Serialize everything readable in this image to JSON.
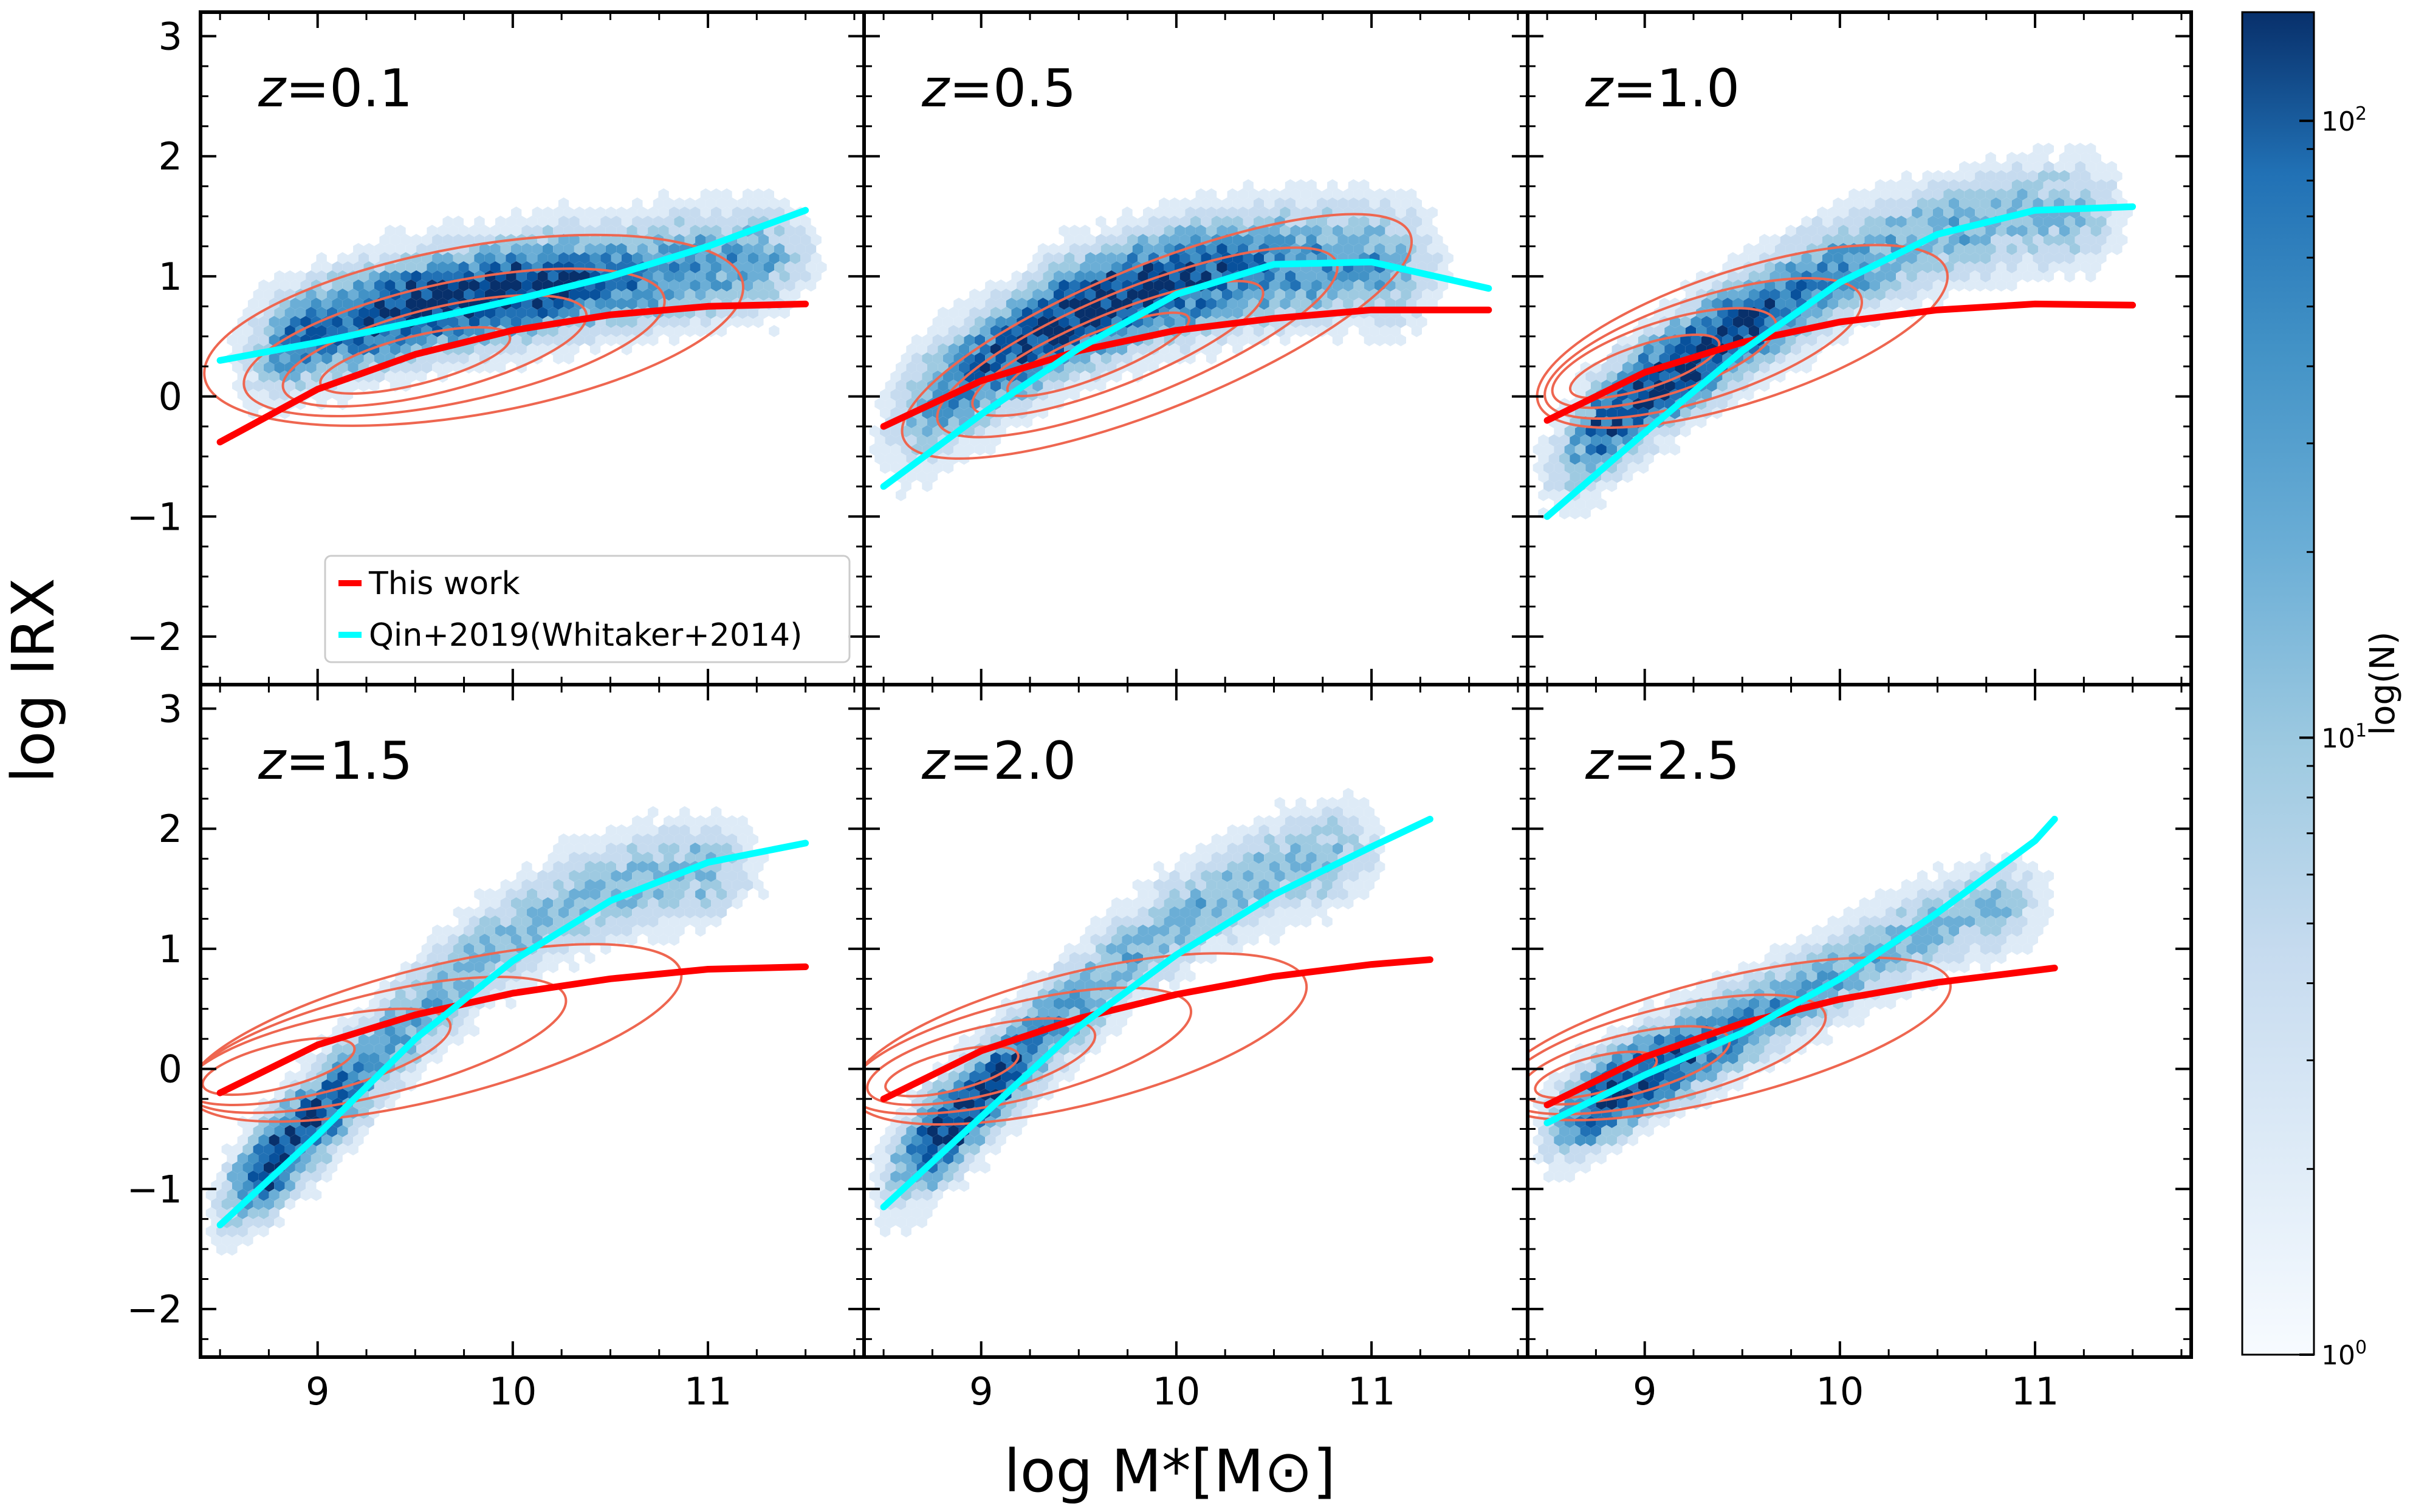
{
  "chart_data": {
    "type": "scatter",
    "subtype": "hexbin density grid with contours and fit curves",
    "xlabel": "log M*[M⊙]",
    "ylabel": "log IRX",
    "xlim": [
      8.4,
      11.8
    ],
    "ylim": [
      -2.4,
      3.2
    ],
    "xticks": [
      9,
      10,
      11
    ],
    "xtick_labels": [
      "9",
      "10",
      "11"
    ],
    "yticks": [
      -2,
      -1,
      0,
      1,
      2,
      3
    ],
    "ytick_labels": [
      "−2",
      "−1",
      "0",
      "1",
      "2",
      "3"
    ],
    "colorbar": {
      "label": "log(N)",
      "scale": "log",
      "range": [
        1,
        150
      ],
      "colormap": "Blues",
      "ticks": [
        {
          "value": 1,
          "base": "10",
          "exp": "0"
        },
        {
          "value": 10,
          "base": "10",
          "exp": "1"
        },
        {
          "value": 100,
          "base": "10",
          "exp": "2"
        }
      ]
    },
    "legend": {
      "panel": 0,
      "position": "lower-center",
      "entries": [
        {
          "label": "This work",
          "color": "#ff0000"
        },
        {
          "label": "Qin+2019(Whitaker+2014)",
          "color": "#00ffff"
        }
      ]
    },
    "colors": {
      "this_work": "#ff0000",
      "qin2019": "#00ffff",
      "contour": "#ee6650"
    },
    "panels": [
      {
        "label_prefix": "z",
        "label_value": "=0.1",
        "this_work": {
          "x": [
            8.5,
            9.0,
            9.5,
            10.0,
            10.5,
            11.0,
            11.5
          ],
          "y": [
            -0.38,
            0.06,
            0.35,
            0.55,
            0.68,
            0.75,
            0.77
          ]
        },
        "qin2019": {
          "x": [
            8.5,
            9.0,
            9.5,
            10.0,
            10.5,
            11.0,
            11.5
          ],
          "y": [
            0.3,
            0.45,
            0.62,
            0.8,
            1.0,
            1.25,
            1.55
          ]
        },
        "density": {
          "x_range": [
            8.6,
            11.5
          ],
          "y_center": [
            0.28,
            0.55,
            0.75,
            0.9,
            1.0,
            1.1,
            1.2
          ],
          "spread": 0.45,
          "peak": {
            "x": 9.7,
            "y": 0.9
          }
        },
        "contours": [
          {
            "center": [
              9.8,
              0.55
            ],
            "half_width": 1.4,
            "half_height": 0.7,
            "tilt_deg": -10
          },
          {
            "center": [
              9.7,
              0.45
            ],
            "half_width": 1.1,
            "half_height": 0.5,
            "tilt_deg": -12
          },
          {
            "center": [
              9.6,
              0.38
            ],
            "half_width": 0.8,
            "half_height": 0.35,
            "tilt_deg": -14
          },
          {
            "center": [
              9.5,
              0.3
            ],
            "half_width": 0.5,
            "half_height": 0.2,
            "tilt_deg": -14
          }
        ]
      },
      {
        "label_prefix": "z",
        "label_value": "=0.5",
        "this_work": {
          "x": [
            8.5,
            9.0,
            9.5,
            10.0,
            10.5,
            11.0,
            11.6
          ],
          "y": [
            -0.25,
            0.13,
            0.38,
            0.55,
            0.65,
            0.72,
            0.72
          ]
        },
        "qin2019": {
          "x": [
            8.5,
            9.0,
            9.5,
            10.0,
            10.5,
            11.0,
            11.6
          ],
          "y": [
            -0.75,
            -0.15,
            0.4,
            0.85,
            1.1,
            1.12,
            0.9
          ]
        },
        "density": {
          "x_range": [
            8.5,
            11.3
          ],
          "y_center": [
            -0.35,
            0.15,
            0.65,
            0.95,
            1.1,
            1.15,
            1.1
          ],
          "spread": 0.5,
          "peak": {
            "x": 9.6,
            "y": 0.7
          }
        },
        "contours": [
          {
            "center": [
              9.9,
              0.5
            ],
            "half_width": 1.4,
            "half_height": 0.6,
            "tilt_deg": -22
          },
          {
            "center": [
              9.8,
              0.45
            ],
            "half_width": 1.1,
            "half_height": 0.45,
            "tilt_deg": -22
          },
          {
            "center": [
              9.7,
              0.4
            ],
            "half_width": 0.8,
            "half_height": 0.3,
            "tilt_deg": -22
          },
          {
            "center": [
              9.6,
              0.35
            ],
            "half_width": 0.5,
            "half_height": 0.18,
            "tilt_deg": -22
          }
        ]
      },
      {
        "label_prefix": "z",
        "label_value": "=1.0",
        "this_work": {
          "x": [
            8.5,
            9.0,
            9.5,
            10.0,
            10.5,
            11.0,
            11.5
          ],
          "y": [
            -0.2,
            0.2,
            0.45,
            0.62,
            0.72,
            0.77,
            0.76
          ]
        },
        "qin2019": {
          "x": [
            8.5,
            9.0,
            9.5,
            10.0,
            10.5,
            11.0,
            11.5
          ],
          "y": [
            -1.0,
            -0.3,
            0.38,
            0.95,
            1.35,
            1.55,
            1.58
          ]
        },
        "density": {
          "x_range": [
            8.5,
            11.4
          ],
          "y_center": [
            -0.7,
            0.0,
            0.6,
            1.05,
            1.35,
            1.5,
            1.55
          ],
          "spread": 0.45,
          "peak": {
            "x": 9.3,
            "y": 0.2
          }
        },
        "contours": [
          {
            "center": [
              9.5,
              0.5
            ],
            "half_width": 1.1,
            "half_height": 0.55,
            "tilt_deg": -18
          },
          {
            "center": [
              9.3,
              0.4
            ],
            "half_width": 0.85,
            "half_height": 0.42,
            "tilt_deg": -18
          },
          {
            "center": [
              9.1,
              0.32
            ],
            "half_width": 0.6,
            "half_height": 0.3,
            "tilt_deg": -18
          },
          {
            "center": [
              9.0,
              0.25
            ],
            "half_width": 0.4,
            "half_height": 0.18,
            "tilt_deg": -18
          }
        ]
      },
      {
        "label_prefix": "z",
        "label_value": "=1.5",
        "this_work": {
          "x": [
            8.5,
            9.0,
            9.5,
            10.0,
            10.5,
            11.0,
            11.5
          ],
          "y": [
            -0.2,
            0.2,
            0.45,
            0.63,
            0.75,
            0.83,
            0.85
          ]
        },
        "qin2019": {
          "x": [
            8.5,
            9.0,
            9.5,
            10.0,
            10.5,
            11.0,
            11.5
          ],
          "y": [
            -1.3,
            -0.55,
            0.25,
            0.9,
            1.4,
            1.72,
            1.88
          ]
        },
        "density": {
          "x_range": [
            8.5,
            11.2
          ],
          "y_center": [
            -1.2,
            -0.45,
            0.3,
            0.95,
            1.4,
            1.6,
            1.7
          ],
          "spread": 0.42,
          "peak": {
            "x": 8.8,
            "y": -0.8
          }
        },
        "contours": [
          {
            "center": [
              9.6,
              0.3
            ],
            "half_width": 1.3,
            "half_height": 0.55,
            "tilt_deg": -14
          },
          {
            "center": [
              9.3,
              0.2
            ],
            "half_width": 1.0,
            "half_height": 0.42,
            "tilt_deg": -14
          },
          {
            "center": [
              9.0,
              0.1
            ],
            "half_width": 0.7,
            "half_height": 0.3,
            "tilt_deg": -14
          },
          {
            "center": [
              8.8,
              0.02
            ],
            "half_width": 0.4,
            "half_height": 0.18,
            "tilt_deg": -14
          }
        ]
      },
      {
        "label_prefix": "z",
        "label_value": "=2.0",
        "this_work": {
          "x": [
            8.5,
            9.0,
            9.5,
            10.0,
            10.5,
            11.0,
            11.3
          ],
          "y": [
            -0.25,
            0.15,
            0.42,
            0.62,
            0.77,
            0.87,
            0.91
          ]
        },
        "qin2019": {
          "x": [
            8.5,
            9.0,
            9.5,
            10.0,
            10.5,
            11.0,
            11.3
          ],
          "y": [
            -1.15,
            -0.4,
            0.35,
            0.95,
            1.45,
            1.85,
            2.08
          ]
        },
        "density": {
          "x_range": [
            8.5,
            11.0
          ],
          "y_center": [
            -1.0,
            -0.35,
            0.35,
            0.95,
            1.4,
            1.7,
            1.85
          ],
          "spread": 0.42,
          "peak": {
            "x": 8.9,
            "y": -0.5
          }
        },
        "contours": [
          {
            "center": [
              9.5,
              0.25
            ],
            "half_width": 1.2,
            "half_height": 0.55,
            "tilt_deg": -14
          },
          {
            "center": [
              9.2,
              0.15
            ],
            "half_width": 0.9,
            "half_height": 0.4,
            "tilt_deg": -14
          },
          {
            "center": [
              9.0,
              0.06
            ],
            "half_width": 0.6,
            "half_height": 0.28,
            "tilt_deg": -14
          },
          {
            "center": [
              8.85,
              -0.02
            ],
            "half_width": 0.35,
            "half_height": 0.16,
            "tilt_deg": -14
          }
        ]
      },
      {
        "label_prefix": "z",
        "label_value": "=2.5",
        "this_work": {
          "x": [
            8.5,
            9.0,
            9.5,
            10.0,
            10.5,
            11.0,
            11.1
          ],
          "y": [
            -0.3,
            0.1,
            0.38,
            0.58,
            0.72,
            0.82,
            0.84
          ]
        },
        "qin2019": {
          "x": [
            8.5,
            9.0,
            9.5,
            10.0,
            10.5,
            11.0,
            11.1
          ],
          "y": [
            -0.45,
            -0.05,
            0.3,
            0.75,
            1.3,
            1.9,
            2.08
          ]
        },
        "density": {
          "x_range": [
            8.5,
            11.0
          ],
          "y_center": [
            -0.55,
            -0.1,
            0.25,
            0.6,
            0.95,
            1.25,
            1.4
          ],
          "spread": 0.38,
          "peak": {
            "x": 8.8,
            "y": -0.3
          }
        },
        "contours": [
          {
            "center": [
              9.4,
              0.25
            ],
            "half_width": 1.2,
            "half_height": 0.5,
            "tilt_deg": -14
          },
          {
            "center": [
              9.1,
              0.12
            ],
            "half_width": 0.85,
            "half_height": 0.38,
            "tilt_deg": -14
          },
          {
            "center": [
              8.9,
              0.03
            ],
            "half_width": 0.55,
            "half_height": 0.25,
            "tilt_deg": -14
          },
          {
            "center": [
              8.75,
              -0.05
            ],
            "half_width": 0.32,
            "half_height": 0.15,
            "tilt_deg": -14
          }
        ]
      }
    ]
  }
}
